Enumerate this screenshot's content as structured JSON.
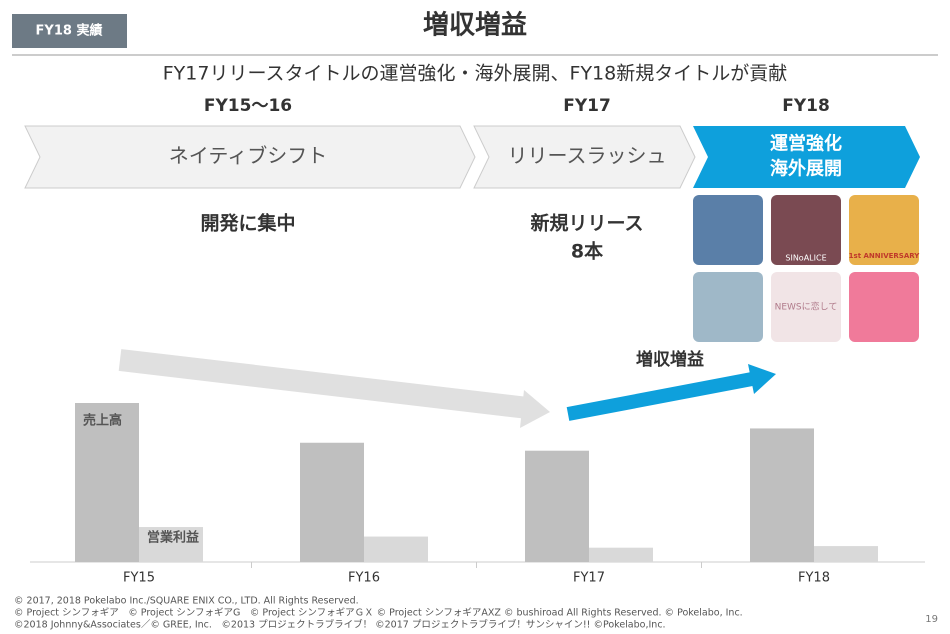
{
  "header": {
    "tag": "FY18 実績",
    "title": "増収増益",
    "subtitle": "FY17リリースタイトルの運営強化・海外展開、FY18新規タイトルが貢献"
  },
  "phases": [
    {
      "period": "FY15〜16",
      "label": [
        "ネイティブシフト"
      ],
      "note": [
        "開発に集中"
      ]
    },
    {
      "period": "FY17",
      "label": [
        "リリースラッシュ"
      ],
      "note": [
        "新規リリース",
        "8本"
      ]
    },
    {
      "period": "FY18",
      "label": [
        "運営強化",
        "海外展開"
      ]
    }
  ],
  "icons": [
    "SINoALICE",
    "1st ANNIVERSARY",
    "NEWSに恋して"
  ],
  "trend_label": "増収増益",
  "chart_data": {
    "type": "bar",
    "categories": [
      "FY15",
      "FY16",
      "FY17",
      "FY18"
    ],
    "series": [
      {
        "name": "売上高",
        "color": "#bfbfbf",
        "values": [
          100,
          75,
          70,
          84
        ]
      },
      {
        "name": "営業利益",
        "color": "#d9d9d9",
        "values": [
          22,
          16,
          9,
          10
        ]
      }
    ],
    "ylim": [
      0,
      100
    ]
  },
  "footer": {
    "lines": [
      "© 2017, 2018 Pokelabo Inc./SQUARE ENIX CO., LTD. All Rights Reserved.",
      "© Project シンフォギア　© Project シンフォギアG　© Project シンフォギアＧＸ © Project シンフォギアAXZ © bushiroad All Rights Reserved. © Pokelabo, Inc.",
      "©2018 Johnny&Associates／© GREE, Inc.　©2013 プロジェクトラブライブ！ ©2017 プロジェクトラブライブ！サンシャイン!! ©Pokelabo,Inc."
    ],
    "page": "19"
  }
}
